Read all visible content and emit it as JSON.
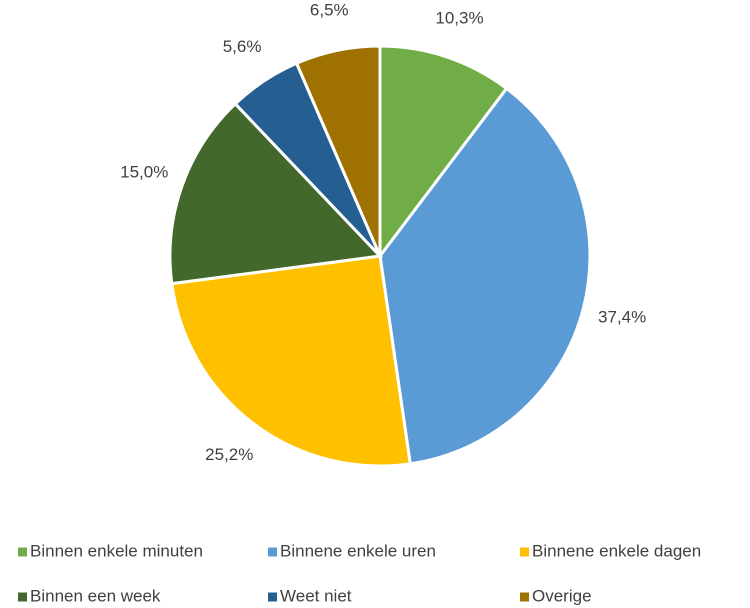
{
  "chart_data": {
    "type": "pie",
    "categories": [
      "Binnen enkele minuten",
      "Binnene enkele uren",
      "Binnene enkele dagen",
      "Binnen een week",
      "Weet niet",
      "Overige"
    ],
    "values": [
      10.3,
      37.4,
      25.2,
      15.0,
      5.6,
      6.5
    ],
    "value_labels": [
      "10,3%",
      "37,4%",
      "25,2%",
      "15,0%",
      "5,6%",
      "6,5%"
    ],
    "colors": [
      "#70ad47",
      "#5b9bd5",
      "#ffc000",
      "#43682b",
      "#255e91",
      "#9e7100"
    ],
    "legend": "bottom"
  }
}
